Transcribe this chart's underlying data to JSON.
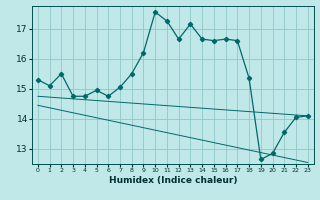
{
  "xlabel": "Humidex (Indice chaleur)",
  "background_color": "#c0e8e8",
  "grid_color": "#90c8c8",
  "line_color": "#006868",
  "xlim": [
    -0.5,
    23.5
  ],
  "ylim": [
    12.5,
    17.75
  ],
  "xticks": [
    0,
    1,
    2,
    3,
    4,
    5,
    6,
    7,
    8,
    9,
    10,
    11,
    12,
    13,
    14,
    15,
    16,
    17,
    18,
    19,
    20,
    21,
    22,
    23
  ],
  "yticks": [
    13,
    14,
    15,
    16,
    17
  ],
  "series_main": [
    15.3,
    15.1,
    15.5,
    14.75,
    14.75,
    14.95,
    14.75,
    15.05,
    15.5,
    16.2,
    17.55,
    17.25,
    16.65,
    17.15,
    16.65,
    16.6,
    16.65,
    16.6,
    15.35,
    12.65,
    12.85,
    13.55,
    14.05,
    14.1
  ],
  "line1_x": [
    0,
    23
  ],
  "line1_y": [
    14.75,
    14.1
  ],
  "line2_x": [
    0,
    23
  ],
  "line2_y": [
    14.45,
    12.55
  ]
}
